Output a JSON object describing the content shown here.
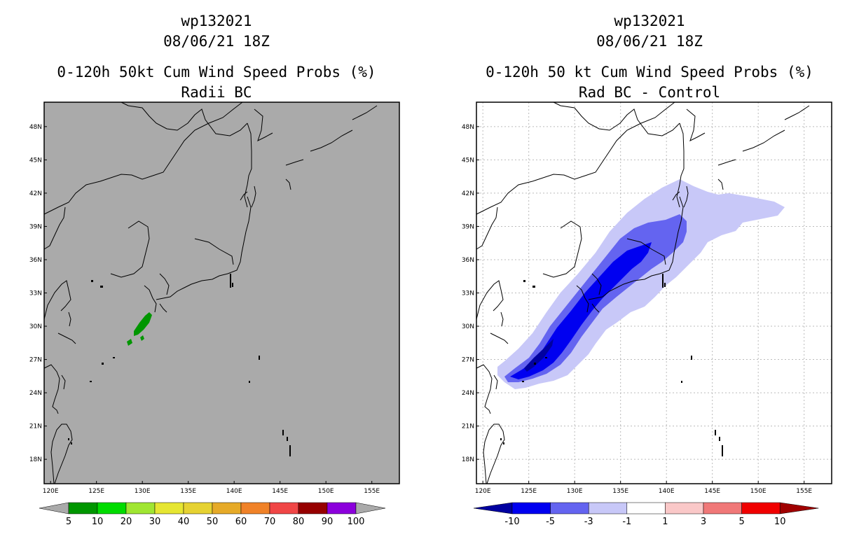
{
  "left_panel": {
    "storm_id": "wp132021",
    "datetime": "08/06/21 18Z",
    "title": "0-120h 50kt Cum Wind Speed Probs (%)",
    "subtitle": "Radii BC",
    "background_color": "#aaaaaa",
    "colorbar": {
      "colors": [
        "#009600",
        "#00dc00",
        "#a0e632",
        "#e6e632",
        "#e6d232",
        "#e6aa28",
        "#f08228",
        "#f04646",
        "#960000",
        "#8c00dc"
      ],
      "labels": [
        "5",
        "10",
        "20",
        "30",
        "40",
        "50",
        "60",
        "70",
        "80",
        "90",
        "100"
      ]
    }
  },
  "right_panel": {
    "storm_id": "wp132021",
    "datetime": "08/06/21 18Z",
    "title": "0-120h 50 kt Cum Wind Speed Probs (%)",
    "subtitle": "Rad BC - Control",
    "background_color": "#ffffff",
    "colorbar": {
      "colors": [
        "#0000a0",
        "#0000f0",
        "#6464f0",
        "#c8c8f8",
        "#ffffff",
        "#fac8c8",
        "#f07878",
        "#f00000",
        "#a00000"
      ],
      "labels": [
        "-10",
        "-5",
        "-3",
        "-1",
        "1",
        "3",
        "5",
        "10"
      ]
    }
  },
  "axes": {
    "lon_labels": [
      "120E",
      "125E",
      "130E",
      "135E",
      "140E",
      "145E",
      "150E",
      "155E"
    ],
    "lat_labels": [
      "48N",
      "45N",
      "42N",
      "39N",
      "36N",
      "33N",
      "30N",
      "27N",
      "24N",
      "21N",
      "18N"
    ],
    "lon_values": [
      120,
      125,
      130,
      135,
      140,
      145,
      150,
      155
    ],
    "lat_values": [
      48,
      45,
      42,
      39,
      36,
      33,
      30,
      27,
      24,
      21,
      18
    ],
    "lon_range": [
      119.3,
      158
    ],
    "lat_range": [
      15.8,
      50.2
    ]
  }
}
